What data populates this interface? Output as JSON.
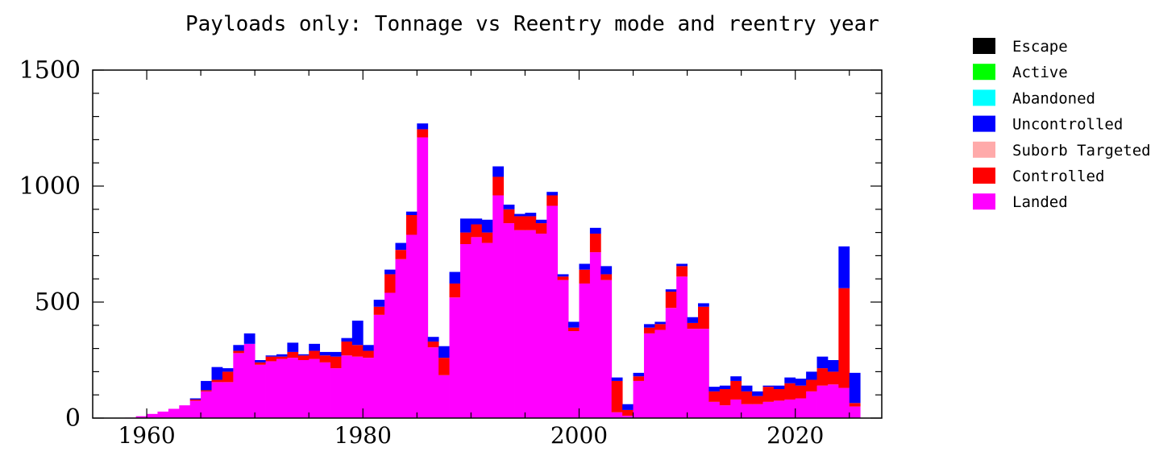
{
  "chart_data": {
    "type": "bar",
    "stacked": true,
    "title": "Payloads only: Tonnage vs Reentry mode and reentry year",
    "xlabel": "",
    "ylabel": "",
    "xlim": [
      1955,
      2028
    ],
    "ylim": [
      0,
      1500
    ],
    "x_ticks": [
      1960,
      1980,
      2000,
      2020
    ],
    "y_ticks": [
      0,
      500,
      1000,
      1500
    ],
    "grid": false,
    "legend_position": "right",
    "categories": [
      1957,
      1958,
      1959,
      1960,
      1961,
      1962,
      1963,
      1964,
      1965,
      1966,
      1967,
      1968,
      1969,
      1970,
      1971,
      1972,
      1973,
      1974,
      1975,
      1976,
      1977,
      1978,
      1979,
      1980,
      1981,
      1982,
      1983,
      1984,
      1985,
      1986,
      1987,
      1988,
      1989,
      1990,
      1991,
      1992,
      1993,
      1994,
      1995,
      1996,
      1997,
      1998,
      1999,
      2000,
      2001,
      2002,
      2003,
      2004,
      2005,
      2006,
      2007,
      2008,
      2009,
      2010,
      2011,
      2012,
      2013,
      2014,
      2015,
      2016,
      2017,
      2018,
      2019,
      2020,
      2021,
      2022,
      2023,
      2024,
      2025
    ],
    "series": [
      {
        "name": "Landed",
        "color": "#ff00ff",
        "values": [
          1,
          2,
          8,
          18,
          28,
          40,
          55,
          75,
          115,
          155,
          155,
          280,
          320,
          230,
          245,
          255,
          260,
          250,
          255,
          240,
          215,
          270,
          265,
          260,
          445,
          540,
          685,
          790,
          1210,
          305,
          185,
          520,
          750,
          780,
          755,
          960,
          840,
          810,
          810,
          795,
          915,
          595,
          375,
          580,
          715,
          595,
          25,
          10,
          160,
          365,
          380,
          475,
          610,
          385,
          385,
          70,
          55,
          80,
          60,
          60,
          70,
          75,
          80,
          85,
          115,
          140,
          145,
          130,
          50
        ]
      },
      {
        "name": "Controlled",
        "color": "#ff0000",
        "values": [
          0,
          0,
          0,
          0,
          0,
          0,
          0,
          5,
          5,
          10,
          45,
          10,
          0,
          10,
          20,
          10,
          25,
          20,
          35,
          30,
          50,
          60,
          50,
          30,
          35,
          80,
          40,
          85,
          35,
          25,
          75,
          60,
          50,
          55,
          45,
          80,
          60,
          60,
          60,
          45,
          45,
          15,
          15,
          60,
          80,
          25,
          135,
          25,
          20,
          25,
          25,
          70,
          45,
          25,
          95,
          45,
          70,
          80,
          55,
          35,
          65,
          50,
          70,
          55,
          50,
          75,
          55,
          430,
          15
        ]
      },
      {
        "name": "Suborb Targeted",
        "color": "#ffaaaa",
        "values": [
          0,
          0,
          0,
          0,
          0,
          0,
          0,
          0,
          0,
          0,
          0,
          0,
          0,
          0,
          0,
          0,
          0,
          0,
          0,
          0,
          0,
          0,
          0,
          0,
          0,
          0,
          0,
          0,
          0,
          0,
          0,
          0,
          0,
          0,
          0,
          0,
          0,
          0,
          0,
          0,
          0,
          0,
          0,
          0,
          0,
          0,
          0,
          0,
          0,
          0,
          0,
          0,
          0,
          0,
          0,
          0,
          0,
          0,
          0,
          0,
          0,
          0,
          0,
          0,
          0,
          0,
          0,
          0,
          0
        ]
      },
      {
        "name": "Uncontrolled",
        "color": "#0000ff",
        "values": [
          0,
          0,
          0,
          0,
          0,
          0,
          0,
          5,
          40,
          55,
          15,
          25,
          45,
          10,
          5,
          10,
          40,
          5,
          30,
          15,
          20,
          15,
          105,
          25,
          30,
          20,
          30,
          15,
          25,
          20,
          50,
          50,
          60,
          25,
          55,
          45,
          20,
          10,
          15,
          15,
          15,
          10,
          25,
          25,
          25,
          35,
          15,
          25,
          15,
          15,
          10,
          10,
          10,
          25,
          15,
          20,
          15,
          20,
          25,
          20,
          5,
          15,
          25,
          30,
          35,
          50,
          50,
          180,
          130
        ]
      },
      {
        "name": "Abandoned",
        "color": "#00ffff",
        "values": [
          0,
          0,
          0,
          0,
          0,
          0,
          0,
          0,
          0,
          0,
          0,
          0,
          0,
          0,
          0,
          0,
          0,
          0,
          0,
          0,
          0,
          0,
          0,
          0,
          0,
          0,
          0,
          0,
          0,
          0,
          0,
          0,
          0,
          0,
          0,
          0,
          0,
          0,
          0,
          0,
          0,
          0,
          0,
          0,
          0,
          0,
          0,
          0,
          0,
          0,
          0,
          0,
          0,
          0,
          0,
          0,
          0,
          0,
          0,
          0,
          0,
          0,
          0,
          0,
          0,
          0,
          0,
          0,
          0
        ]
      },
      {
        "name": "Active",
        "color": "#00ff00",
        "values": [
          0,
          0,
          0,
          0,
          0,
          0,
          0,
          0,
          0,
          0,
          0,
          0,
          0,
          0,
          0,
          0,
          0,
          0,
          0,
          0,
          0,
          0,
          0,
          0,
          0,
          0,
          0,
          0,
          0,
          0,
          0,
          0,
          0,
          0,
          0,
          0,
          0,
          0,
          0,
          0,
          0,
          0,
          0,
          0,
          0,
          0,
          0,
          0,
          0,
          0,
          0,
          0,
          0,
          0,
          0,
          0,
          0,
          0,
          0,
          0,
          0,
          0,
          0,
          0,
          0,
          0,
          0,
          0,
          0
        ]
      },
      {
        "name": "Escape",
        "color": "#000000",
        "values": [
          0,
          0,
          0,
          0,
          0,
          0,
          0,
          0,
          0,
          0,
          0,
          0,
          0,
          0,
          0,
          0,
          0,
          0,
          0,
          0,
          0,
          0,
          0,
          0,
          0,
          0,
          0,
          0,
          0,
          0,
          0,
          0,
          0,
          0,
          0,
          0,
          0,
          0,
          0,
          0,
          0,
          0,
          0,
          0,
          0,
          0,
          0,
          0,
          0,
          0,
          0,
          0,
          0,
          0,
          0,
          0,
          0,
          0,
          0,
          0,
          0,
          0,
          0,
          0,
          0,
          0,
          0,
          0,
          0
        ]
      }
    ],
    "legend": [
      {
        "label": "Escape",
        "color": "#000000"
      },
      {
        "label": "Active",
        "color": "#00ff00"
      },
      {
        "label": "Abandoned",
        "color": "#00ffff"
      },
      {
        "label": "Uncontrolled",
        "color": "#0000ff"
      },
      {
        "label": "Suborb Targeted",
        "color": "#ffaaaa"
      },
      {
        "label": "Controlled",
        "color": "#ff0000"
      },
      {
        "label": "Landed",
        "color": "#ff00ff"
      }
    ]
  }
}
